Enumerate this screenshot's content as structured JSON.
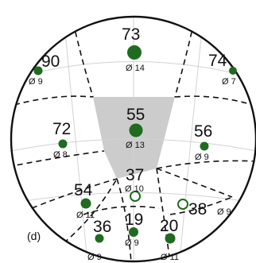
{
  "panel_label": "(d)",
  "colors": {
    "marker": "#1f6b1f",
    "marker_open_fill": "#ffffff",
    "highlight_region": "#cccccc",
    "boundary": "#111111",
    "grid": "#d2d2d2"
  },
  "regions": [
    {
      "id": "top",
      "value": "73",
      "diameter": "Ø 14",
      "marker": "filled"
    },
    {
      "id": "upper-left",
      "value": "90",
      "diameter": "Ø 9",
      "marker": "filled"
    },
    {
      "id": "upper-right",
      "value": "74",
      "diameter": "Ø 7",
      "marker": "filled"
    },
    {
      "id": "center",
      "value": "55",
      "diameter": "Ø 13",
      "marker": "filled",
      "highlighted": true
    },
    {
      "id": "mid-left",
      "value": "72",
      "diameter": "Ø 8",
      "marker": "filled"
    },
    {
      "id": "mid-right",
      "value": "56",
      "diameter": "Ø 9",
      "marker": "filled"
    },
    {
      "id": "lower-center",
      "value": "37",
      "diameter": "Ø 10",
      "marker": "open"
    },
    {
      "id": "lower-right",
      "value": "38",
      "diameter": "Ø 9",
      "marker": "open"
    },
    {
      "id": "lower-left",
      "value": "54",
      "diameter": "Ø 11",
      "marker": "filled"
    },
    {
      "id": "bottom-left",
      "value": "36",
      "diameter": "Ø 9",
      "marker": "filled"
    },
    {
      "id": "bottom-center",
      "value": "19",
      "diameter": "Ø 9",
      "marker": "filled"
    },
    {
      "id": "bottom-right",
      "value": "20",
      "diameter": "Ø 11",
      "marker": "filled"
    }
  ]
}
